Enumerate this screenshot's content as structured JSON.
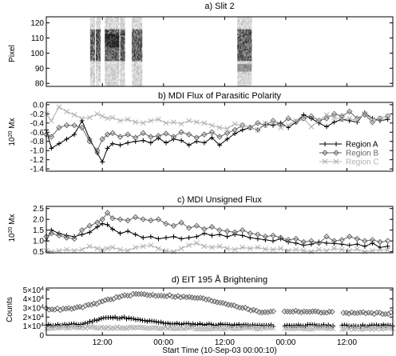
{
  "figure": {
    "xlabel": "Start Time (10-Sep-03 00:00:10)",
    "x_ticks": [
      "12:00",
      "00:00",
      "12:00",
      "00:00",
      "12:00"
    ],
    "x_tick_hours": [
      12,
      24,
      36,
      48,
      60
    ],
    "x_range_hours": [
      1,
      69
    ]
  },
  "chart_data": [
    {
      "type": "heatmap",
      "title": "a) Slit 2",
      "ylabel": "Pixel",
      "ylim": [
        78,
        124
      ],
      "y_ticks": [
        80,
        90,
        100,
        110,
        120
      ],
      "x_hours": [
        1,
        69
      ],
      "data_segments_hours": [
        [
          9.6,
          10.4
        ],
        [
          10.7,
          11.5
        ],
        [
          12.5,
          15.2
        ],
        [
          15.5,
          16.3
        ],
        [
          17.8,
          19.8
        ],
        [
          38.5,
          41.3
        ]
      ],
      "description_value_range": "dark bands near pixels 95-115"
    },
    {
      "type": "line",
      "title": "b) MDI Flux of Parasitic Polarity",
      "ylabel": "10^20 Mx",
      "ylabel_base": "10",
      "ylabel_exp": "20",
      "ylabel_unit": " Mx",
      "ylim": [
        -1.45,
        0.05
      ],
      "y_ticks": [
        0.0,
        -0.2,
        -0.4,
        -0.6,
        -0.8,
        -1.0,
        -1.2,
        -1.4
      ],
      "y_tick_labels": [
        "0.0",
        "-0.2",
        "-0.4",
        "-0.6",
        "-0.8",
        "-1.0",
        "-1.2",
        "-1.4"
      ],
      "legend_position": "bottom-right",
      "series": [
        {
          "name": "Region A",
          "color": "#000000",
          "marker": "plus",
          "x": [
            1,
            2,
            3.5,
            5,
            6.5,
            8,
            9.5,
            11,
            12,
            13,
            14,
            15.5,
            17,
            18.5,
            20,
            21.5,
            23,
            24.5,
            26,
            27.5,
            29,
            30.5,
            32,
            33.5,
            35,
            36.5,
            38,
            39.5,
            41,
            42.5,
            44,
            45.5,
            47,
            48.5,
            50,
            51.5,
            53,
            54.5,
            56,
            57.5,
            59,
            60.5,
            62,
            63.5,
            65,
            66.5,
            68
          ],
          "y": [
            -0.55,
            -0.95,
            -0.85,
            -0.75,
            -0.65,
            -0.35,
            -0.75,
            -1.05,
            -1.25,
            -0.95,
            -0.85,
            -0.88,
            -0.83,
            -0.8,
            -0.78,
            -0.83,
            -0.73,
            -0.83,
            -0.75,
            -0.78,
            -0.88,
            -0.8,
            -0.83,
            -0.72,
            -0.88,
            -0.75,
            -0.63,
            -0.55,
            -0.5,
            -0.55,
            -0.42,
            -0.45,
            -0.4,
            -0.5,
            -0.38,
            -0.22,
            -0.3,
            -0.4,
            -0.48,
            -0.38,
            -0.32,
            -0.35,
            -0.38,
            -0.18,
            -0.3,
            -0.35,
            -0.32
          ]
        },
        {
          "name": "Region B",
          "color": "#666666",
          "marker": "diamond",
          "x": [
            1,
            2,
            3.5,
            5,
            6.5,
            8,
            9.5,
            11,
            12,
            13,
            14,
            15.5,
            17,
            18.5,
            20,
            21.5,
            23,
            24.5,
            26,
            27.5,
            29,
            30.5,
            32,
            33.5,
            35,
            36.5,
            38,
            39.5,
            41,
            42.5,
            44,
            45.5,
            47,
            48.5,
            50,
            51.5,
            53,
            54.5,
            56,
            57.5,
            59,
            60.5,
            62,
            63.5,
            65,
            66.5,
            68
          ],
          "y": [
            -0.65,
            -0.7,
            -0.5,
            -0.45,
            -0.45,
            -0.5,
            -0.8,
            -1.0,
            -0.75,
            -0.65,
            -0.62,
            -0.7,
            -0.65,
            -0.72,
            -0.62,
            -0.7,
            -0.68,
            -0.63,
            -0.7,
            -0.6,
            -0.65,
            -0.72,
            -0.65,
            -0.6,
            -0.7,
            -0.62,
            -0.55,
            -0.45,
            -0.5,
            -0.4,
            -0.45,
            -0.35,
            -0.42,
            -0.3,
            -0.38,
            -0.3,
            -0.25,
            -0.35,
            -0.3,
            -0.2,
            -0.25,
            -0.15,
            -0.3,
            -0.22,
            -0.38,
            -0.3,
            -0.25
          ]
        },
        {
          "name": "Region C",
          "color": "#b0b0b0",
          "marker": "cross",
          "x": [
            1,
            2,
            3.5,
            5,
            6.5,
            8,
            9.5,
            11,
            12,
            13,
            14,
            15.5,
            17,
            18.5,
            20,
            21.5,
            23,
            24.5,
            26,
            27.5,
            29,
            30.5,
            32,
            33.5,
            35,
            36.5,
            38,
            39.5,
            41,
            42.5,
            44,
            45.5,
            47,
            48.5,
            50,
            51.5,
            53,
            54.5,
            56,
            57.5,
            59,
            60.5,
            62,
            63.5,
            65,
            66.5,
            68
          ],
          "y": [
            -0.2,
            -0.35,
            -0.05,
            -0.15,
            -0.22,
            -0.3,
            -0.28,
            -0.2,
            -0.25,
            -0.3,
            -0.28,
            -0.35,
            -0.32,
            -0.38,
            -0.4,
            -0.35,
            -0.32,
            -0.4,
            -0.38,
            -0.42,
            -0.35,
            -0.38,
            -0.4,
            -0.45,
            -0.5,
            -0.52,
            -0.42,
            -0.45,
            -0.5,
            -0.55,
            -0.4,
            -0.38,
            -0.5,
            -0.45,
            -0.35,
            -0.3,
            -0.48,
            -0.35,
            -0.22,
            -0.28,
            -0.32,
            -0.3,
            -0.35,
            -0.2,
            -0.32,
            -0.3,
            -0.25
          ]
        }
      ]
    },
    {
      "type": "line",
      "title": "c) MDI Unsigned Flux",
      "ylabel": "10^20 Mx",
      "ylabel_base": "10",
      "ylabel_exp": "20",
      "ylabel_unit": " Mx",
      "ylim": [
        0.45,
        2.6
      ],
      "y_ticks": [
        0.5,
        1.0,
        1.5,
        2.0,
        2.5
      ],
      "y_tick_labels": [
        "0.5",
        "1.0",
        "1.5",
        "2.0",
        "2.5"
      ],
      "series": [
        {
          "name": "Region A",
          "color": "#000000",
          "marker": "plus",
          "x": [
            1,
            2,
            3.5,
            5,
            6.5,
            8,
            9.5,
            11,
            12,
            13,
            14,
            15.5,
            17,
            18.5,
            20,
            21.5,
            23,
            24.5,
            26,
            27.5,
            29,
            30.5,
            32,
            33.5,
            35,
            36.5,
            38,
            39.5,
            41,
            42.5,
            44,
            45.5,
            47,
            48.5,
            50,
            51.5,
            53,
            54.5,
            56,
            57.5,
            59,
            60.5,
            62,
            63.5,
            65,
            66.5,
            68
          ],
          "y": [
            1.0,
            1.5,
            1.35,
            1.25,
            1.2,
            1.3,
            1.4,
            1.65,
            1.8,
            1.75,
            1.55,
            1.35,
            1.45,
            1.3,
            1.15,
            1.2,
            1.1,
            1.15,
            1.2,
            1.1,
            1.15,
            1.2,
            1.35,
            1.25,
            1.3,
            1.2,
            1.3,
            1.25,
            1.15,
            1.1,
            1.05,
            1.0,
            1.1,
            0.95,
            0.9,
            0.8,
            0.85,
            0.95,
            0.9,
            0.88,
            0.85,
            0.8,
            0.85,
            0.75,
            0.9,
            0.7,
            0.75
          ]
        },
        {
          "name": "Region B",
          "color": "#666666",
          "marker": "diamond",
          "x": [
            1,
            2,
            3.5,
            5,
            6.5,
            8,
            9.5,
            11,
            12,
            13,
            14,
            15.5,
            17,
            18.5,
            20,
            21.5,
            23,
            24.5,
            26,
            27.5,
            29,
            30.5,
            32,
            33.5,
            35,
            36.5,
            38,
            39.5,
            41,
            42.5,
            44,
            45.5,
            47,
            48.5,
            50,
            51.5,
            53,
            54.5,
            56,
            57.5,
            59,
            60.5,
            62,
            63.5,
            65,
            66.5,
            68
          ],
          "y": [
            1.2,
            1.35,
            1.25,
            1.15,
            1.1,
            1.5,
            1.7,
            1.85,
            2.0,
            2.3,
            2.05,
            2.0,
            1.95,
            2.1,
            2.0,
            1.95,
            2.0,
            1.8,
            1.7,
            1.85,
            1.6,
            1.7,
            1.55,
            1.65,
            1.5,
            1.45,
            1.4,
            1.5,
            1.35,
            1.3,
            1.2,
            1.25,
            1.15,
            1.05,
            1.1,
            0.95,
            1.0,
            0.9,
            1.2,
            1.0,
            1.05,
            1.2,
            1.1,
            1.0,
            1.05,
            0.95,
            1.0
          ]
        },
        {
          "name": "Region C",
          "color": "#b0b0b0",
          "marker": "cross",
          "x": [
            1,
            2,
            3.5,
            5,
            6.5,
            8,
            9.5,
            11,
            12,
            13,
            14,
            15.5,
            17,
            18.5,
            20,
            21.5,
            23,
            24.5,
            26,
            27.5,
            29,
            30.5,
            32,
            33.5,
            35,
            36.5,
            38,
            39.5,
            41,
            42.5,
            44,
            45.5,
            47,
            48.5,
            50,
            51.5,
            53,
            54.5,
            56,
            57.5,
            59,
            60.5,
            62,
            63.5,
            65,
            66.5,
            68
          ],
          "y": [
            0.55,
            0.5,
            0.55,
            0.6,
            0.55,
            0.6,
            0.75,
            0.65,
            0.6,
            0.65,
            0.7,
            0.6,
            0.55,
            0.7,
            0.75,
            0.8,
            0.65,
            0.55,
            0.5,
            0.65,
            0.8,
            0.9,
            0.75,
            0.7,
            0.75,
            0.65,
            0.6,
            0.7,
            0.65,
            0.7,
            0.62,
            0.6,
            0.65,
            0.55,
            0.6,
            0.55,
            0.5,
            0.6,
            0.55,
            0.65,
            0.6,
            0.55,
            0.62,
            0.5,
            0.55,
            0.6,
            0.58
          ]
        }
      ]
    },
    {
      "type": "scatter",
      "title": "d) EIT 195 Å Brightening",
      "ylabel": "Counts",
      "ylim": [
        0,
        52000
      ],
      "y_ticks": [
        0,
        10000,
        20000,
        30000,
        40000,
        50000
      ],
      "y_tick_labels": [
        {
          "m": "0",
          "e": ""
        },
        {
          "m": "1×10",
          "e": "4"
        },
        {
          "m": "2×10",
          "e": "4"
        },
        {
          "m": "3×10",
          "e": "4"
        },
        {
          "m": "4×10",
          "e": "4"
        },
        {
          "m": "5×10",
          "e": "4"
        }
      ],
      "gaps_hours": [
        [
          45.6,
          47.5
        ],
        [
          57.4,
          58.9
        ]
      ],
      "series": [
        {
          "name": "Region A",
          "color": "#000000",
          "marker": "plus",
          "x": [
            1,
            8,
            12,
            16,
            20,
            26,
            32,
            40,
            46,
            52,
            58,
            64,
            69
          ],
          "y": [
            11000,
            12000,
            19000,
            19500,
            16000,
            12500,
            12000,
            11000,
            10500,
            11000,
            10500,
            10500,
            11000
          ]
        },
        {
          "name": "Region B",
          "color": "#666666",
          "marker": "diamond",
          "x": [
            1,
            4,
            7,
            10,
            13,
            16,
            19,
            22,
            25,
            28,
            31,
            34,
            37,
            40,
            43,
            46,
            49,
            52,
            55,
            58,
            61,
            64,
            67,
            69
          ],
          "y": [
            29000,
            28500,
            30000,
            33500,
            39000,
            43000,
            45500,
            44000,
            43500,
            42000,
            41000,
            37500,
            34000,
            29500,
            25500,
            26000,
            26500,
            26000,
            25500,
            25000,
            24500,
            24500,
            24000,
            24500
          ]
        },
        {
          "name": "Region C",
          "color": "#b0b0b0",
          "marker": "cross",
          "x": [
            1,
            8,
            14,
            20,
            26,
            32,
            38,
            44,
            50,
            56,
            62,
            69
          ],
          "y": [
            8000,
            8500,
            8200,
            7800,
            8000,
            7500,
            7800,
            7600,
            7400,
            7500,
            7300,
            7500
          ]
        }
      ]
    }
  ]
}
